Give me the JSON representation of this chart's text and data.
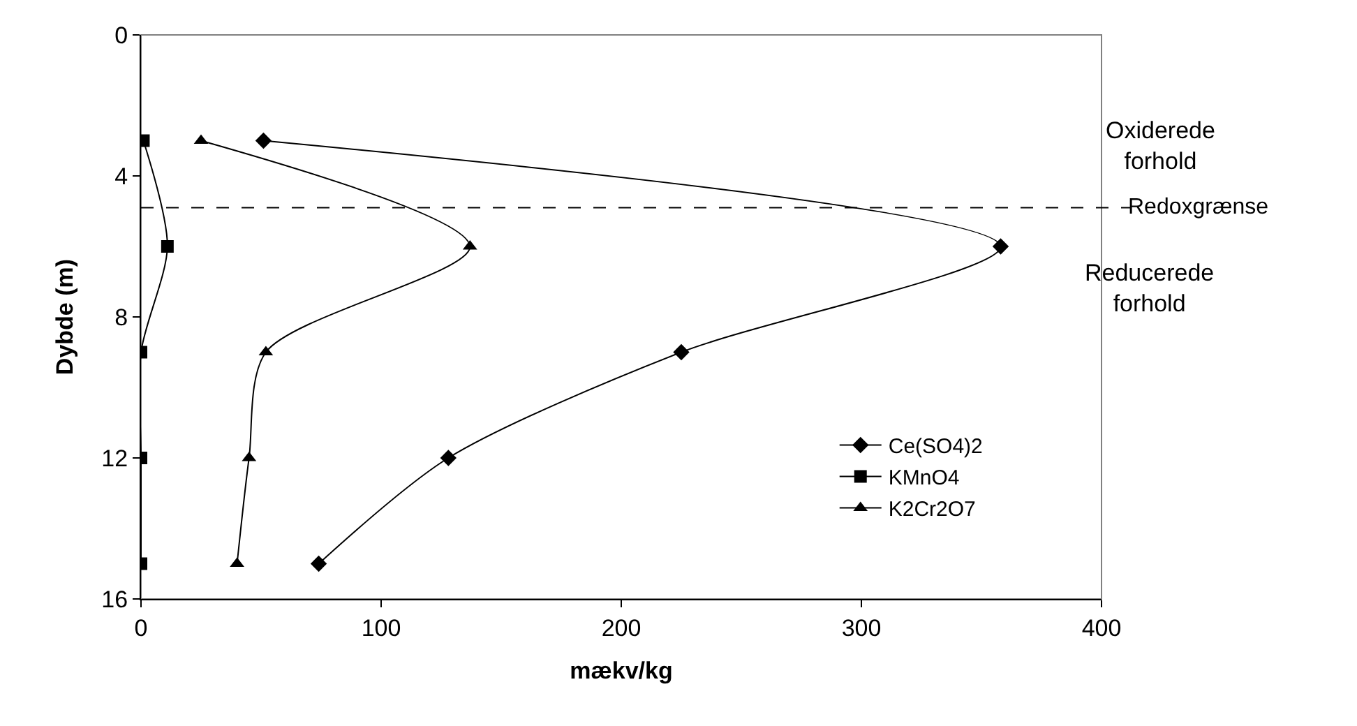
{
  "chart_data": {
    "type": "line",
    "xlabel": "mækv/kg",
    "ylabel": "Dybde (m)",
    "xlim": [
      0,
      400
    ],
    "xticks": [
      0,
      100,
      200,
      300,
      400
    ],
    "ylim": [
      16,
      0
    ],
    "yticks": [
      0,
      4,
      8,
      12,
      16
    ],
    "grid": false,
    "legend": "bottom right",
    "series": [
      {
        "name": "Ce(SO4)2",
        "color": "#000000",
        "marker": "diamond",
        "x": [
          51,
          358,
          225,
          128,
          74
        ],
        "values": [
          3,
          6,
          9,
          12,
          15
        ]
      },
      {
        "name": "KMnO4",
        "color": "#000000",
        "marker": "square",
        "x": [
          1,
          11,
          0,
          0,
          0
        ],
        "values": [
          3,
          6,
          9,
          12,
          15
        ]
      },
      {
        "name": "K2Cr2O7",
        "color": "#000000",
        "marker": "triangle",
        "x": [
          25,
          137,
          52,
          45,
          40
        ],
        "values": [
          3,
          6,
          9,
          12,
          15
        ]
      }
    ],
    "ref_lines": [
      {
        "axis": "y",
        "value": 4.9,
        "label": "Redoxgrænse",
        "line_style": "dashed",
        "color": "#000000"
      }
    ],
    "annotations": [
      "Oxiderede\nforhold",
      "Reducerede\nforhold"
    ]
  }
}
